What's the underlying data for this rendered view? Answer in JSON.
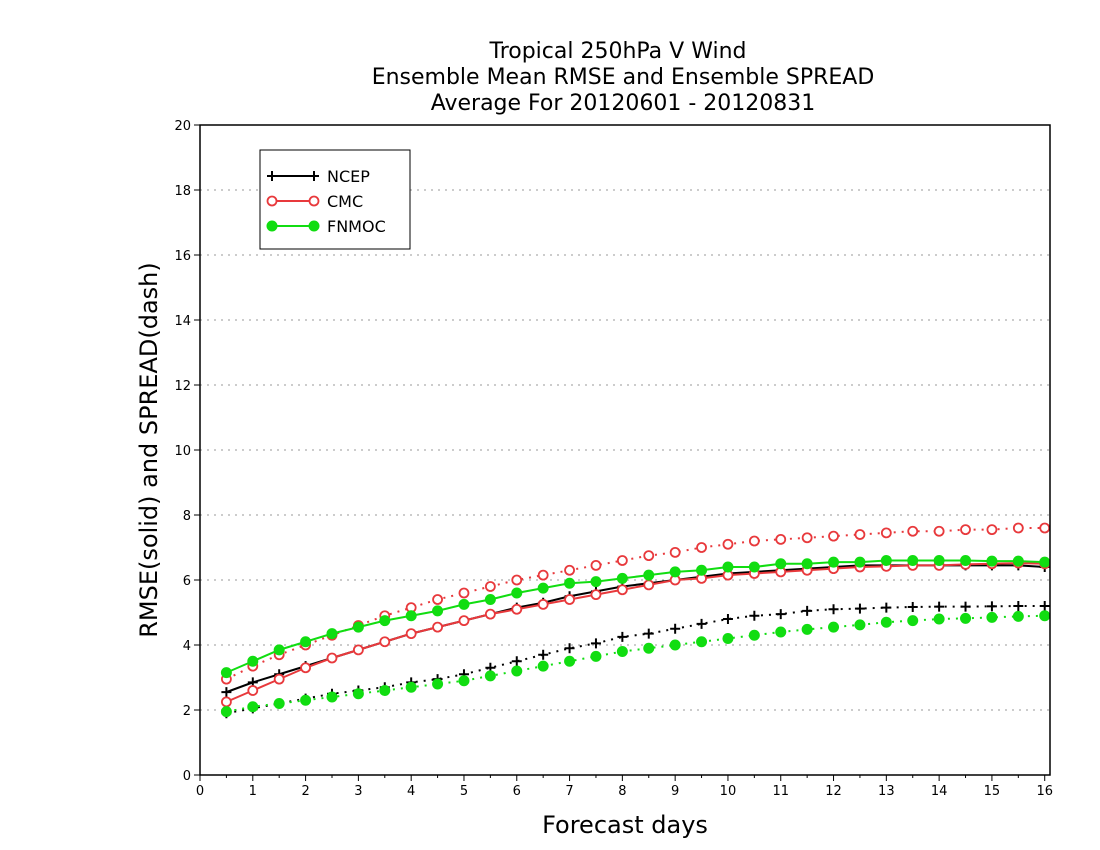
{
  "chart_data": {
    "type": "line",
    "title_lines": [
      "Tropical 250hPa V Wind",
      "Ensemble Mean RMSE and Ensemble SPREAD",
      "Average For 20120601 - 20120831"
    ],
    "xlabel": "Forecast days",
    "ylabel": "RMSE(solid) and SPREAD(dash)",
    "xlim": [
      0,
      16.1
    ],
    "ylim": [
      0,
      20
    ],
    "xticks": [
      0,
      1,
      2,
      3,
      4,
      5,
      6,
      7,
      8,
      9,
      10,
      11,
      12,
      13,
      14,
      15,
      16
    ],
    "yticks": [
      0,
      2,
      4,
      6,
      8,
      10,
      12,
      14,
      16,
      18,
      20
    ],
    "grid": true,
    "legend_position": "top-left",
    "x": [
      0.5,
      1,
      1.5,
      2,
      2.5,
      3,
      3.5,
      4,
      4.5,
      5,
      5.5,
      6,
      6.5,
      7,
      7.5,
      8,
      8.5,
      9,
      9.5,
      10,
      10.5,
      11,
      11.5,
      12,
      12.5,
      13,
      13.5,
      14,
      14.5,
      15,
      15.5,
      16
    ],
    "series": [
      {
        "name": "NCEP",
        "color": "#000000",
        "marker": "plus",
        "rmse": [
          2.55,
          2.85,
          3.1,
          3.35,
          3.6,
          3.85,
          4.1,
          4.35,
          4.55,
          4.75,
          4.95,
          5.15,
          5.3,
          5.5,
          5.65,
          5.8,
          5.9,
          6.0,
          6.1,
          6.2,
          6.25,
          6.3,
          6.35,
          6.4,
          6.45,
          6.45,
          6.45,
          6.45,
          6.45,
          6.45,
          6.45,
          6.4
        ],
        "spread": [
          1.9,
          2.05,
          2.2,
          2.35,
          2.5,
          2.6,
          2.7,
          2.85,
          2.95,
          3.1,
          3.3,
          3.5,
          3.7,
          3.9,
          4.05,
          4.25,
          4.35,
          4.5,
          4.65,
          4.8,
          4.9,
          4.95,
          5.05,
          5.1,
          5.12,
          5.15,
          5.17,
          5.18,
          5.18,
          5.19,
          5.2,
          5.2
        ]
      },
      {
        "name": "CMC",
        "color": "#e8393c",
        "marker": "circle",
        "rmse": [
          2.25,
          2.6,
          2.95,
          3.3,
          3.6,
          3.85,
          4.1,
          4.35,
          4.55,
          4.75,
          4.95,
          5.1,
          5.25,
          5.4,
          5.55,
          5.7,
          5.85,
          6.0,
          6.05,
          6.15,
          6.2,
          6.25,
          6.3,
          6.35,
          6.4,
          6.42,
          6.45,
          6.45,
          6.48,
          6.5,
          6.52,
          6.5
        ],
        "spread": [
          2.95,
          3.35,
          3.7,
          4.0,
          4.3,
          4.6,
          4.9,
          5.15,
          5.4,
          5.6,
          5.8,
          6.0,
          6.15,
          6.3,
          6.45,
          6.6,
          6.75,
          6.85,
          7.0,
          7.1,
          7.2,
          7.25,
          7.3,
          7.35,
          7.4,
          7.45,
          7.5,
          7.5,
          7.55,
          7.55,
          7.6,
          7.6
        ]
      },
      {
        "name": "FNMOC",
        "color": "#11dd11",
        "marker": "filled-circle",
        "rmse": [
          3.15,
          3.5,
          3.85,
          4.1,
          4.35,
          4.55,
          4.75,
          4.9,
          5.05,
          5.25,
          5.4,
          5.6,
          5.75,
          5.9,
          5.95,
          6.05,
          6.15,
          6.25,
          6.3,
          6.4,
          6.4,
          6.5,
          6.5,
          6.55,
          6.55,
          6.6,
          6.6,
          6.6,
          6.6,
          6.58,
          6.58,
          6.55
        ],
        "spread": [
          1.95,
          2.1,
          2.2,
          2.3,
          2.4,
          2.5,
          2.6,
          2.7,
          2.8,
          2.9,
          3.05,
          3.2,
          3.35,
          3.5,
          3.65,
          3.8,
          3.9,
          4.0,
          4.1,
          4.2,
          4.3,
          4.4,
          4.48,
          4.55,
          4.62,
          4.7,
          4.75,
          4.8,
          4.82,
          4.85,
          4.88,
          4.9
        ]
      }
    ]
  }
}
